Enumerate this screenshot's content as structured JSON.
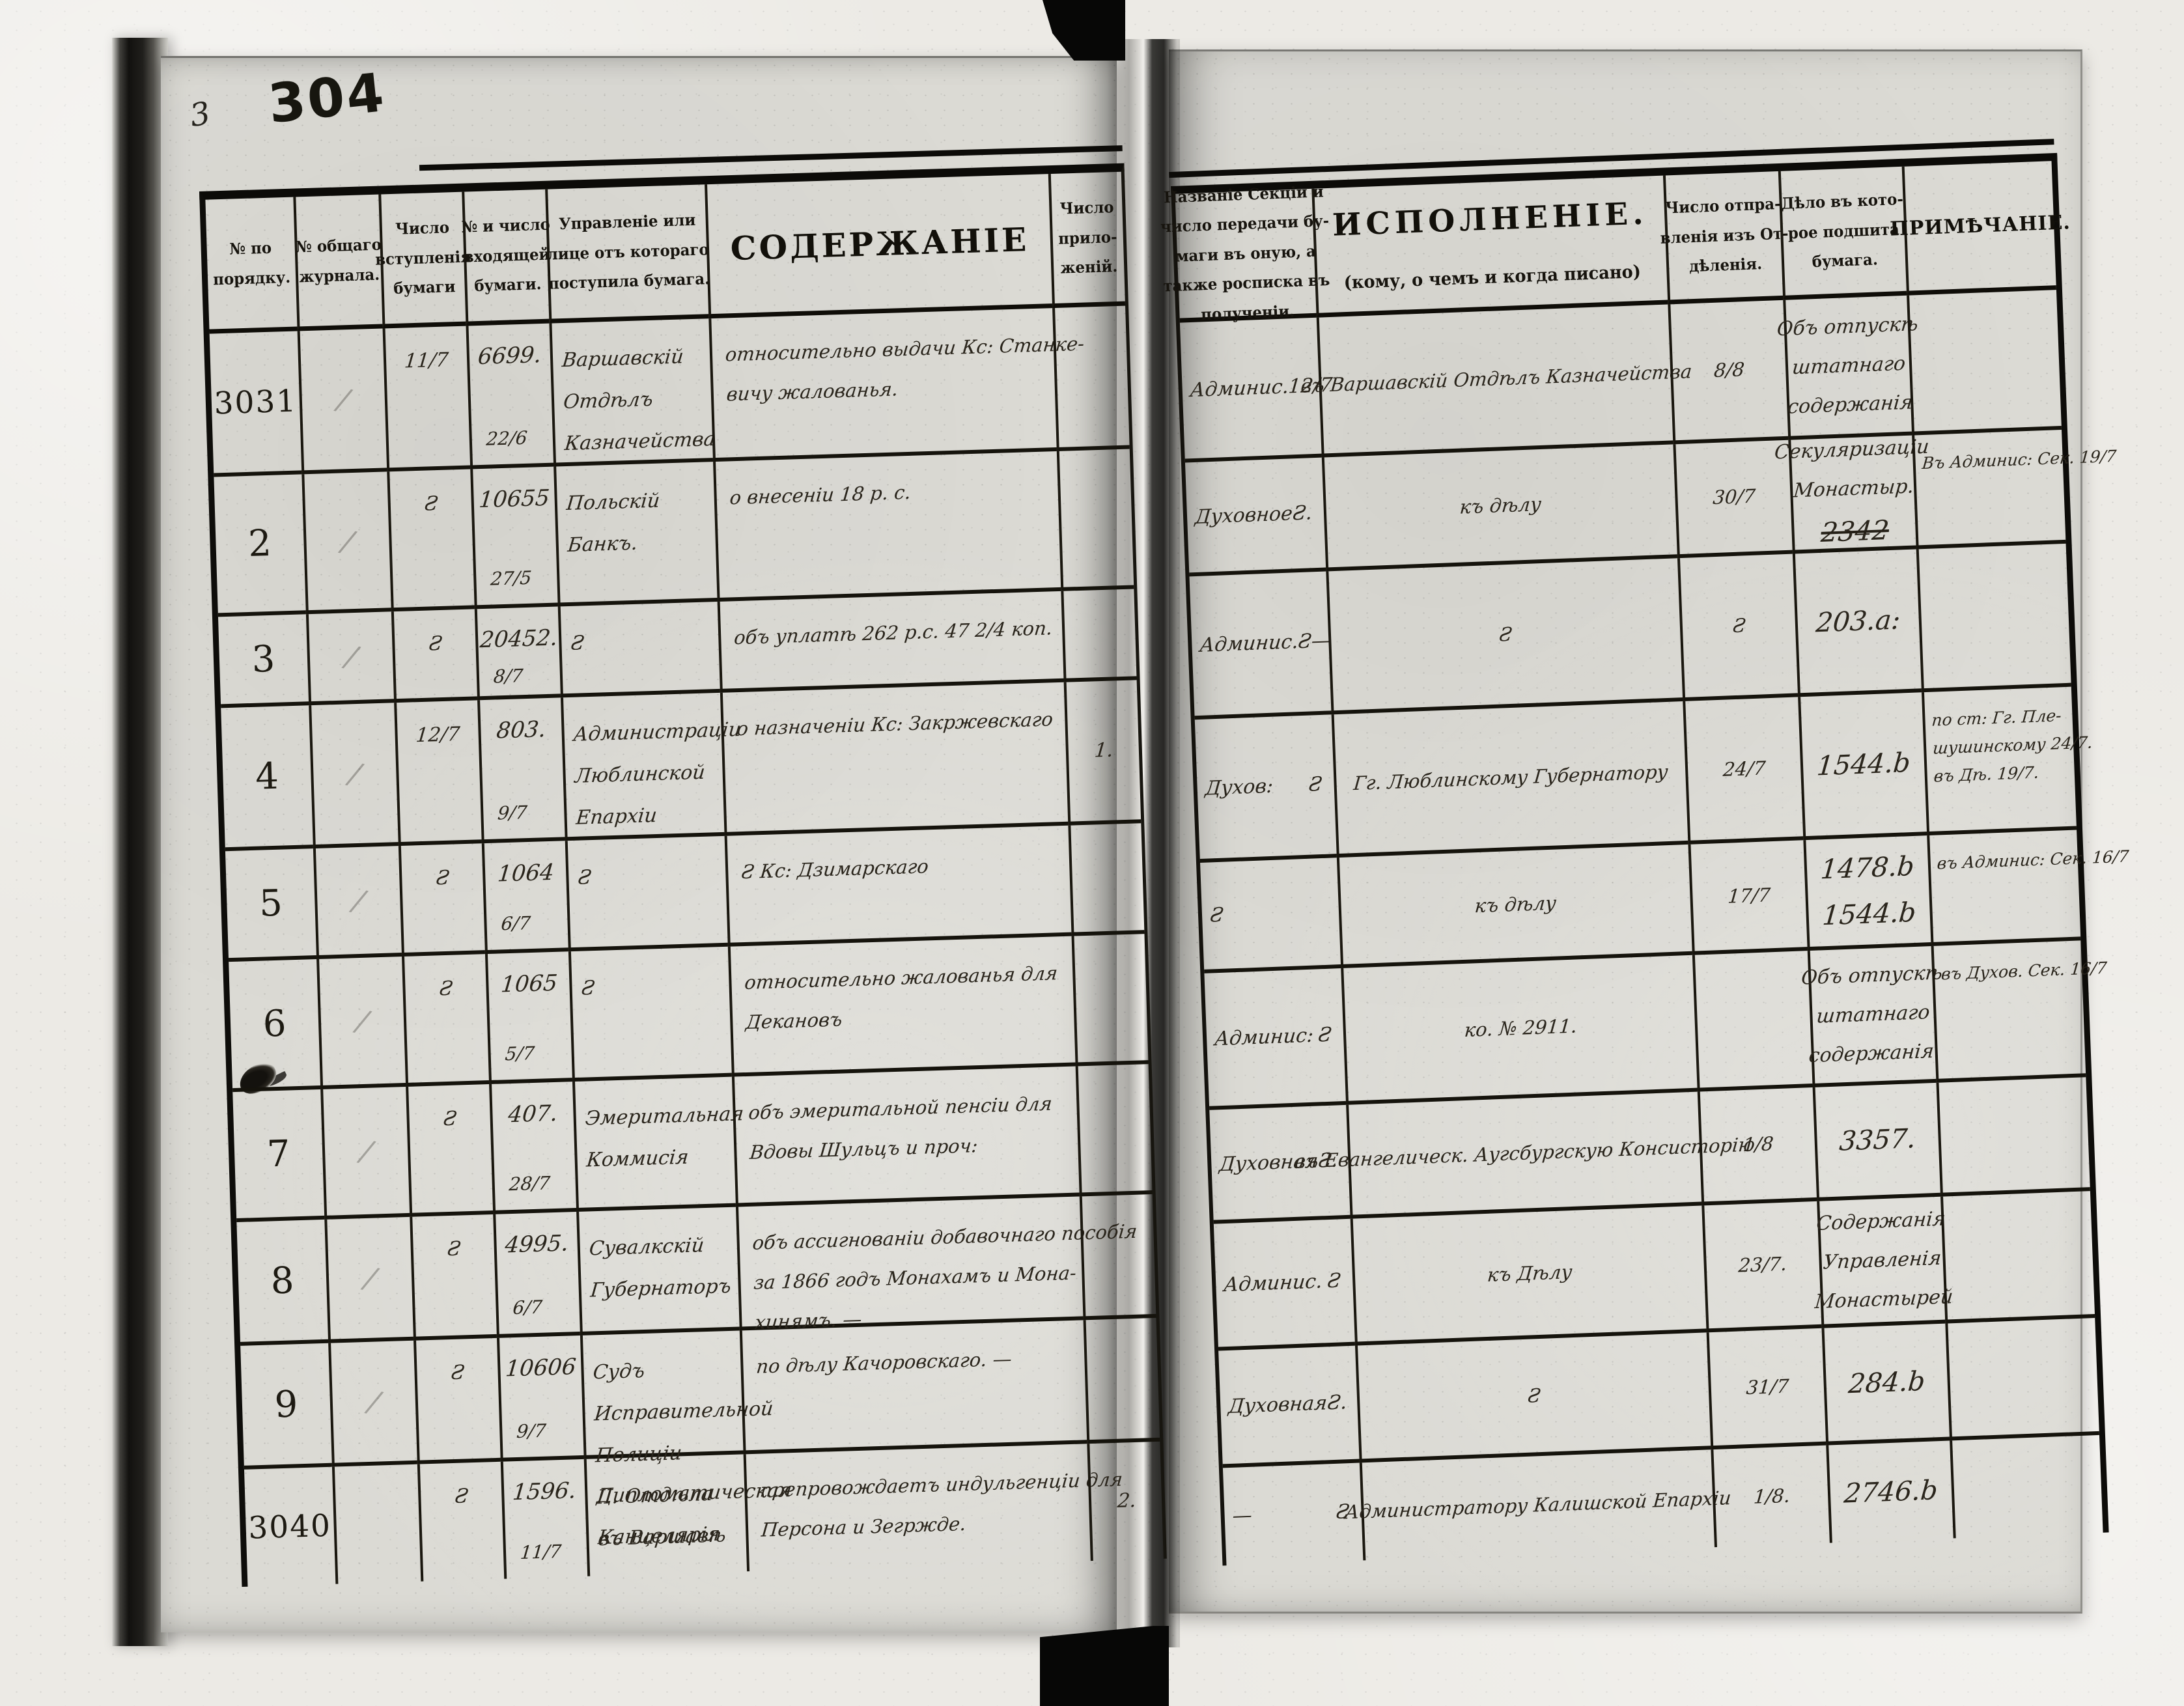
{
  "document": {
    "page_number": "304",
    "corner_mark": "3"
  },
  "left_page": {
    "headers": [
      {
        "id": "order-number",
        "lines": [
          "№ по",
          "порядку."
        ]
      },
      {
        "id": "journal-number",
        "lines": [
          "№ общаго",
          "журнала."
        ]
      },
      {
        "id": "entry-date",
        "lines": [
          "Число",
          "вступленія",
          "бумаги"
        ]
      },
      {
        "id": "incoming-number",
        "lines": [
          "№ и число",
          "входящей",
          "бумаги."
        ]
      },
      {
        "id": "office",
        "lines": [
          "Управленіе или",
          "лице отъ котораго",
          "поступила бумага."
        ]
      },
      {
        "id": "content",
        "lines": [
          "СОДЕРЖАНІЕ"
        ],
        "big": true
      },
      {
        "id": "attachments",
        "lines": [
          "Число",
          "прило-",
          "женій."
        ]
      }
    ],
    "rows": [
      {
        "num": "3031",
        "journal": "/",
        "entry": "11/7",
        "incoming_no": "6699.",
        "incoming_date": "22/6",
        "office": [
          "Варшавскій",
          "Отдѣлъ",
          "Казначейства"
        ],
        "content": [
          "относительно выдачи Кс: Станке-",
          "вичу жалованья."
        ],
        "attachments": ""
      },
      {
        "num": "2",
        "journal": "/",
        "entry": "Ƨ",
        "incoming_no": "10655",
        "incoming_date": "27/5",
        "office": [
          "Польскій",
          "Банкъ."
        ],
        "content": [
          "о внесеніи 18 р. с."
        ],
        "attachments": ""
      },
      {
        "num": "3",
        "journal": "/",
        "entry": "Ƨ",
        "incoming_no": "20452.",
        "incoming_date": "8/7",
        "office": [
          "Ƨ"
        ],
        "content": [
          "объ уплатѣ 262 р.с. 47 2/4 коп."
        ],
        "attachments": ""
      },
      {
        "num": "4",
        "journal": "/",
        "entry": "12/7",
        "incoming_no": "803.",
        "incoming_date": "9/7",
        "office": [
          "Администраціи",
          "Люблинской",
          "Епархіи"
        ],
        "content": [
          "о назначеніи Кс: Закржевскаго"
        ],
        "attachments": "1."
      },
      {
        "num": "5",
        "journal": "/",
        "entry": "Ƨ",
        "incoming_no": "1064",
        "incoming_date": "6/7",
        "office": [
          "Ƨ"
        ],
        "content": [
          "Ƨ        Кс: Дзимарскаго"
        ],
        "attachments": ""
      },
      {
        "num": "6",
        "journal": "/",
        "entry": "Ƨ",
        "incoming_no": "1065",
        "incoming_date": "5/7",
        "office": [
          "Ƨ"
        ],
        "content": [
          "относительно жалованья для",
          "Декановъ"
        ],
        "attachments": ""
      },
      {
        "num": "7",
        "journal": "/",
        "entry": "Ƨ",
        "incoming_no": "407.",
        "incoming_date": "28/7",
        "office": [
          "Эмеритальная",
          "Коммисія"
        ],
        "content": [
          "объ эмеритальной пенсіи для",
          "Вдовы Шульцъ и проч:"
        ],
        "attachments": ""
      },
      {
        "num": "8",
        "journal": "/",
        "entry": "Ƨ",
        "incoming_no": "4995.",
        "incoming_date": "6/7",
        "office": [
          "Сувалкскій",
          "Губернаторъ"
        ],
        "content": [
          "объ ассигнованіи добавочнаго пособія",
          "за 1866 годъ Монахамъ и Мона-",
          "хинямъ. —"
        ],
        "attachments": ""
      },
      {
        "num": "9",
        "journal": "/",
        "entry": "Ƨ",
        "incoming_no": "10606",
        "incoming_date": "9/7",
        "office": [
          "Судъ",
          "Исправительной",
          "Полиціи",
          "II. Отдѣла",
          "въ Варшавѣ"
        ],
        "content": [
          "по дѣлу Качоровскаго. —"
        ],
        "attachments": ""
      },
      {
        "num": "3040",
        "journal": "",
        "entry": "Ƨ",
        "incoming_no": "1596.",
        "incoming_date": "11/7",
        "office": [
          "Дипломатическая",
          "Канцелярія"
        ],
        "content": [
          "препровождаетъ индульгенціи для",
          "Персона и Зегржде."
        ],
        "attachments": "2."
      }
    ]
  },
  "right_page": {
    "headers": [
      {
        "id": "section",
        "lines": [
          "Названіе Секціи и",
          "число передачи бу-",
          "маги въ оную, а",
          "также росписка въ",
          "полученіи."
        ]
      },
      {
        "id": "execution",
        "lines": [
          "ИСПОЛНЕНІЕ."
        ],
        "sub": "(кому, о чемъ и когда писано)",
        "big": true
      },
      {
        "id": "dispatch",
        "lines": [
          "Число отпра-",
          "вленія изъ От-",
          "дѣленія."
        ]
      },
      {
        "id": "file",
        "lines": [
          "Дѣло въ кото-",
          "рое подшита",
          "бумага."
        ]
      },
      {
        "id": "note",
        "lines": [
          "ПРИМѢЧАНІЕ."
        ],
        "note_title": true
      }
    ],
    "rows": [
      {
        "section_name": "Админис.",
        "section_no": "12/7",
        "execution": [
          "въ Варшавскій Отдѣлъ Казначейства"
        ],
        "dispatch": "8/8",
        "file": [
          "Объ отпускѣ",
          "штатнаго",
          "содержанія"
        ],
        "file_struck": "",
        "note": []
      },
      {
        "section_name": "Духовное",
        "section_no": "Ƨ.",
        "execution": [
          "къ дѣлу"
        ],
        "dispatch": "30/7",
        "file": [
          "Секуляризаціи",
          "Монастыр."
        ],
        "file_struck": "2342",
        "note": [
          "Въ Админис: Сек. 19/7"
        ]
      },
      {
        "section_name": "Админис.",
        "section_no": "Ƨ—",
        "execution": [
          "Ƨ"
        ],
        "dispatch": "Ƨ",
        "file": [
          "203.а:"
        ],
        "file_struck": "",
        "note": []
      },
      {
        "section_name": "Духов:",
        "section_no": "Ƨ",
        "execution": [
          "Гг. Люблинскому Губернатору"
        ],
        "dispatch": "24/7",
        "file": [
          "1544.b"
        ],
        "file_struck": "",
        "note": [
          "по ст: Гг. Пле-",
          "шушинскому 24/7.",
          "въ Дѣ. 19/7."
        ]
      },
      {
        "section_name": "",
        "section_no": "Ƨ",
        "execution": [
          "къ дѣлу"
        ],
        "dispatch": "17/7",
        "file": [
          "1478.b",
          "1544.b"
        ],
        "file_struck": "",
        "note": [
          "въ Админис: Сек. 16/7"
        ]
      },
      {
        "section_name": "Админис:",
        "section_no": "Ƨ",
        "execution": [
          "ко. № 2911."
        ],
        "dispatch": "",
        "file": [
          "Объ отпускѣ",
          "штатнаго",
          "содержанія."
        ],
        "file_struck": "",
        "note": [
          "въ Духов. Сек. 16/7"
        ]
      },
      {
        "section_name": "Духовная",
        "section_no": "Ƨ.",
        "execution": [
          "въ Евангелическ. Аугсбургскую Консисторію"
        ],
        "dispatch": "1/8",
        "file": [
          "3357."
        ],
        "file_struck": "",
        "note": []
      },
      {
        "section_name": "Админис.",
        "section_no": "Ƨ",
        "execution": [
          "къ Дѣлу"
        ],
        "dispatch": "23/7.",
        "file": [
          "Содержанія",
          "Управленія",
          "Монастырей"
        ],
        "file_struck": "",
        "note": []
      },
      {
        "section_name": "Духовная",
        "section_no": "Ƨ.",
        "execution": [
          "Ƨ"
        ],
        "dispatch": "31/7",
        "file": [
          "284.b"
        ],
        "file_struck": "",
        "note": []
      },
      {
        "section_name": "—",
        "section_no": "Ƨ",
        "execution": [
          "Администратору Калишской Епархіи"
        ],
        "dispatch": "1/8.",
        "file": [
          "2746.b"
        ],
        "file_struck": "",
        "note": []
      }
    ]
  }
}
